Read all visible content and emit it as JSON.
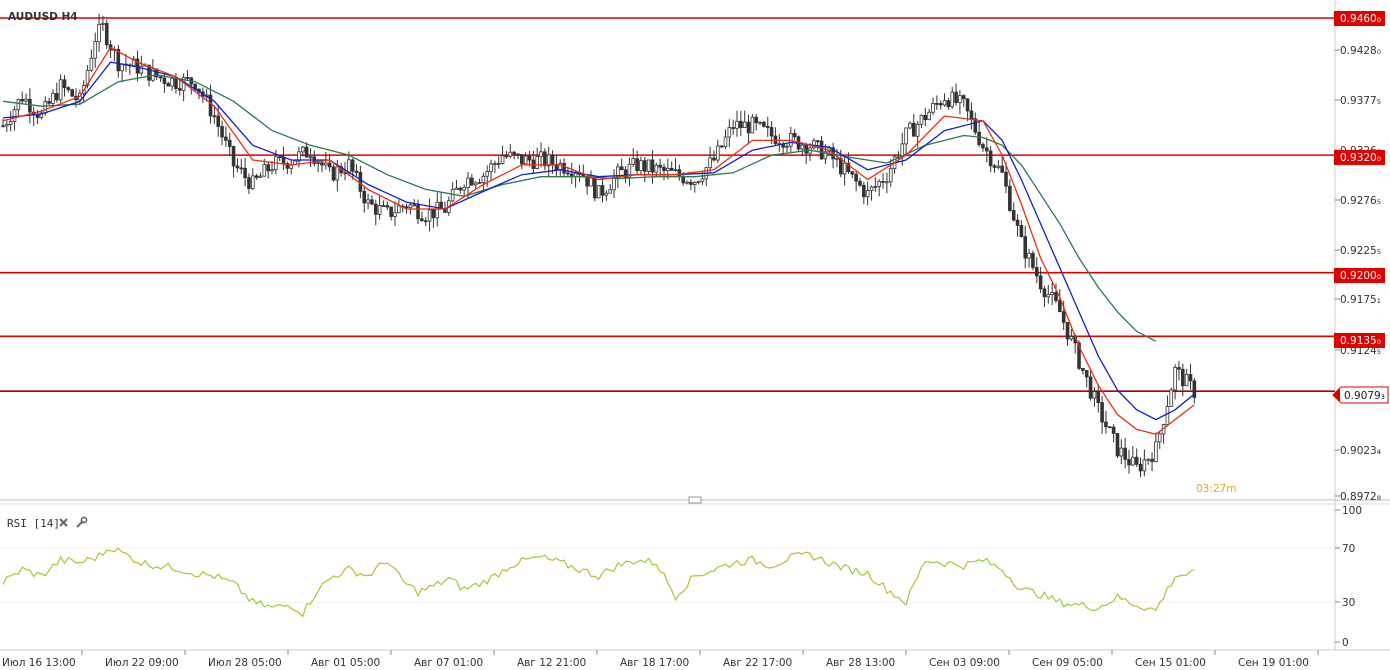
{
  "header": {
    "symbol_label": "AUDUSD H4"
  },
  "timer": "03:27m",
  "rsi_panel": {
    "label": "RSI [14]",
    "close_icon": "close-icon",
    "settings_icon": "wrench-icon",
    "ticks": [
      "100",
      "70",
      "30",
      "0"
    ]
  },
  "price_axis": {
    "ticks": [
      "0.9428₀",
      "0.9377₅",
      "0.9326₅",
      "0.9276₅",
      "0.9225₅",
      "0.9175₁",
      "0.9124₅",
      "0.9023₄",
      "0.8972₈"
    ]
  },
  "time_axis": {
    "labels": [
      "Июл 16 13:00",
      "Июл 22 09:00",
      "Июл 28 05:00",
      "Авг 01 05:00",
      "Авг 07 01:00",
      "Авг 12 21:00",
      "Авг 18 17:00",
      "Авг 22 17:00",
      "Авг 28 13:00",
      "Сен 03 09:00",
      "Сен 09 05:00",
      "Сен 15 01:00",
      "Сен 19 01:00"
    ]
  },
  "levels": [
    {
      "label": "0.9460₀",
      "value": 0.946
    },
    {
      "label": "0.9320₀",
      "value": 0.932
    },
    {
      "label": "0.9200₀",
      "value": 0.92
    },
    {
      "label": "0.9135₀",
      "value": 0.9135
    }
  ],
  "current_price": {
    "label": "0.9079₃",
    "value": 0.9079
  },
  "colors": {
    "level_line": "#e00000",
    "ema_fast": "#e83010",
    "ema_mid": "#1020d0",
    "ema_slow": "#2a7a4a",
    "rsi_line": "#9acd32",
    "candle": "#333333"
  },
  "chart_data": {
    "type": "candlestick",
    "title": "AUDUSD H4",
    "ylim": [
      0.896,
      0.947
    ],
    "close_path": [
      [
        0,
        0.935
      ],
      [
        5,
        0.938
      ],
      [
        10,
        0.936
      ],
      [
        15,
        0.939
      ],
      [
        20,
        0.9375
      ],
      [
        24,
        0.944
      ],
      [
        26,
        0.945
      ],
      [
        30,
        0.9415
      ],
      [
        35,
        0.941
      ],
      [
        40,
        0.94
      ],
      [
        45,
        0.9395
      ],
      [
        50,
        0.9395
      ],
      [
        55,
        0.936
      ],
      [
        60,
        0.931
      ],
      [
        65,
        0.929
      ],
      [
        70,
        0.931
      ],
      [
        75,
        0.9315
      ],
      [
        80,
        0.9325
      ],
      [
        85,
        0.93
      ],
      [
        90,
        0.931
      ],
      [
        95,
        0.927
      ],
      [
        100,
        0.926
      ],
      [
        105,
        0.927
      ],
      [
        110,
        0.926
      ],
      [
        115,
        0.9265
      ],
      [
        120,
        0.9295
      ],
      [
        125,
        0.93
      ],
      [
        130,
        0.932
      ],
      [
        135,
        0.9315
      ],
      [
        140,
        0.9315
      ],
      [
        145,
        0.931
      ],
      [
        150,
        0.9305
      ],
      [
        155,
        0.928
      ],
      [
        160,
        0.93
      ],
      [
        165,
        0.931
      ],
      [
        170,
        0.9305
      ],
      [
        175,
        0.93
      ],
      [
        180,
        0.9295
      ],
      [
        185,
        0.9315
      ],
      [
        190,
        0.935
      ],
      [
        195,
        0.935
      ],
      [
        200,
        0.934
      ],
      [
        205,
        0.9335
      ],
      [
        210,
        0.933
      ],
      [
        215,
        0.932
      ],
      [
        220,
        0.93
      ],
      [
        225,
        0.928
      ],
      [
        230,
        0.93
      ],
      [
        235,
        0.934
      ],
      [
        240,
        0.936
      ],
      [
        245,
        0.938
      ],
      [
        250,
        0.937
      ],
      [
        255,
        0.933
      ],
      [
        260,
        0.93
      ],
      [
        265,
        0.923
      ],
      [
        270,
        0.919
      ],
      [
        275,
        0.916
      ],
      [
        280,
        0.911
      ],
      [
        285,
        0.906
      ],
      [
        290,
        0.902
      ],
      [
        295,
        0.9
      ],
      [
        300,
        0.902
      ],
      [
        305,
        0.91
      ],
      [
        310,
        0.9079
      ]
    ],
    "ema_fast_path": [
      [
        0,
        0.9355
      ],
      [
        10,
        0.9365
      ],
      [
        20,
        0.938
      ],
      [
        28,
        0.943
      ],
      [
        35,
        0.9415
      ],
      [
        45,
        0.94
      ],
      [
        55,
        0.937
      ],
      [
        65,
        0.9315
      ],
      [
        75,
        0.931
      ],
      [
        85,
        0.9315
      ],
      [
        95,
        0.9285
      ],
      [
        105,
        0.9265
      ],
      [
        115,
        0.9265
      ],
      [
        125,
        0.929
      ],
      [
        135,
        0.931
      ],
      [
        145,
        0.931
      ],
      [
        155,
        0.9295
      ],
      [
        165,
        0.93
      ],
      [
        175,
        0.93
      ],
      [
        185,
        0.9305
      ],
      [
        195,
        0.9335
      ],
      [
        205,
        0.9335
      ],
      [
        215,
        0.9325
      ],
      [
        225,
        0.9295
      ],
      [
        235,
        0.932
      ],
      [
        245,
        0.936
      ],
      [
        255,
        0.9355
      ],
      [
        260,
        0.932
      ],
      [
        265,
        0.927
      ],
      [
        270,
        0.9215
      ],
      [
        275,
        0.9175
      ],
      [
        280,
        0.9125
      ],
      [
        285,
        0.9085
      ],
      [
        290,
        0.9055
      ],
      [
        295,
        0.904
      ],
      [
        300,
        0.9035
      ],
      [
        305,
        0.905
      ],
      [
        310,
        0.9065
      ]
    ],
    "ema_mid_path": [
      [
        0,
        0.9358
      ],
      [
        10,
        0.9362
      ],
      [
        20,
        0.9375
      ],
      [
        28,
        0.9415
      ],
      [
        35,
        0.941
      ],
      [
        45,
        0.94
      ],
      [
        55,
        0.9375
      ],
      [
        65,
        0.933
      ],
      [
        75,
        0.9315
      ],
      [
        85,
        0.9315
      ],
      [
        95,
        0.929
      ],
      [
        105,
        0.9272
      ],
      [
        115,
        0.9265
      ],
      [
        125,
        0.9283
      ],
      [
        135,
        0.93
      ],
      [
        145,
        0.9305
      ],
      [
        155,
        0.9298
      ],
      [
        165,
        0.93
      ],
      [
        175,
        0.93
      ],
      [
        185,
        0.9302
      ],
      [
        195,
        0.9325
      ],
      [
        205,
        0.9333
      ],
      [
        215,
        0.9328
      ],
      [
        225,
        0.9305
      ],
      [
        235,
        0.9315
      ],
      [
        245,
        0.9345
      ],
      [
        255,
        0.9355
      ],
      [
        260,
        0.9335
      ],
      [
        265,
        0.9295
      ],
      [
        270,
        0.925
      ],
      [
        275,
        0.9205
      ],
      [
        280,
        0.916
      ],
      [
        285,
        0.9115
      ],
      [
        290,
        0.908
      ],
      [
        295,
        0.906
      ],
      [
        300,
        0.905
      ],
      [
        305,
        0.906
      ],
      [
        310,
        0.9076
      ]
    ],
    "ema_slow_path": [
      [
        0,
        0.9375
      ],
      [
        10,
        0.937
      ],
      [
        20,
        0.9372
      ],
      [
        30,
        0.9395
      ],
      [
        40,
        0.9402
      ],
      [
        50,
        0.9395
      ],
      [
        60,
        0.9375
      ],
      [
        70,
        0.9345
      ],
      [
        80,
        0.933
      ],
      [
        90,
        0.932
      ],
      [
        100,
        0.93
      ],
      [
        110,
        0.9285
      ],
      [
        120,
        0.9278
      ],
      [
        130,
        0.929
      ],
      [
        140,
        0.9298
      ],
      [
        150,
        0.9298
      ],
      [
        160,
        0.9296
      ],
      [
        170,
        0.9298
      ],
      [
        180,
        0.9298
      ],
      [
        190,
        0.9302
      ],
      [
        200,
        0.932
      ],
      [
        210,
        0.9325
      ],
      [
        220,
        0.9318
      ],
      [
        230,
        0.9312
      ],
      [
        240,
        0.933
      ],
      [
        250,
        0.934
      ],
      [
        255,
        0.9338
      ],
      [
        260,
        0.933
      ],
      [
        265,
        0.931
      ],
      [
        270,
        0.928
      ],
      [
        275,
        0.925
      ],
      [
        280,
        0.9215
      ],
      [
        285,
        0.9185
      ],
      [
        290,
        0.916
      ],
      [
        295,
        0.914
      ],
      [
        300,
        0.913
      ]
    ],
    "rsi_path": [
      [
        0,
        45
      ],
      [
        5,
        55
      ],
      [
        10,
        50
      ],
      [
        15,
        62
      ],
      [
        20,
        60
      ],
      [
        25,
        65
      ],
      [
        28,
        72
      ],
      [
        32,
        66
      ],
      [
        36,
        60
      ],
      [
        40,
        58
      ],
      [
        45,
        56
      ],
      [
        50,
        52
      ],
      [
        55,
        50
      ],
      [
        60,
        44
      ],
      [
        65,
        30
      ],
      [
        70,
        26
      ],
      [
        75,
        28
      ],
      [
        78,
        22
      ],
      [
        82,
        40
      ],
      [
        86,
        50
      ],
      [
        90,
        55
      ],
      [
        95,
        50
      ],
      [
        100,
        62
      ],
      [
        104,
        46
      ],
      [
        108,
        38
      ],
      [
        112,
        42
      ],
      [
        116,
        48
      ],
      [
        120,
        40
      ],
      [
        124,
        44
      ],
      [
        128,
        50
      ],
      [
        132,
        58
      ],
      [
        136,
        62
      ],
      [
        140,
        64
      ],
      [
        145,
        60
      ],
      [
        150,
        55
      ],
      [
        155,
        50
      ],
      [
        160,
        58
      ],
      [
        165,
        62
      ],
      [
        170,
        60
      ],
      [
        175,
        35
      ],
      [
        180,
        50
      ],
      [
        185,
        55
      ],
      [
        190,
        60
      ],
      [
        195,
        62
      ],
      [
        200,
        58
      ],
      [
        205,
        64
      ],
      [
        210,
        66
      ],
      [
        215,
        60
      ],
      [
        220,
        55
      ],
      [
        225,
        52
      ],
      [
        230,
        40
      ],
      [
        235,
        30
      ],
      [
        240,
        62
      ],
      [
        245,
        60
      ],
      [
        250,
        58
      ],
      [
        255,
        62
      ],
      [
        260,
        55
      ],
      [
        265,
        40
      ],
      [
        270,
        36
      ],
      [
        275,
        30
      ],
      [
        280,
        28
      ],
      [
        285,
        26
      ],
      [
        290,
        34
      ],
      [
        295,
        28
      ],
      [
        300,
        24
      ],
      [
        305,
        50
      ],
      [
        310,
        52
      ]
    ]
  }
}
